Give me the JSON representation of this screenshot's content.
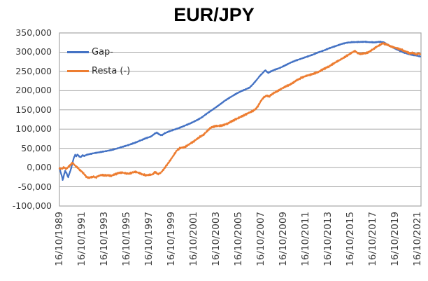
{
  "colors": {
    "background": "#ffffff",
    "gridline": "#a6a6a6",
    "plot_border": "#a6a6a6",
    "axis_text": "#3b3b3b",
    "title_text": "#000000",
    "series_blue": "#4472c4",
    "series_orange": "#ed7d31"
  },
  "chart_data": {
    "type": "line",
    "title": "EUR/JPY",
    "xlabel": "",
    "ylabel": "",
    "grid": true,
    "legend_position": "top-left-inside",
    "ylim": [
      -100000,
      350000
    ],
    "x_range": [
      1989.79,
      2022.12
    ],
    "x_tick_start_year": 1989.79,
    "x_tick_step_years": 2,
    "x_tick_labels": [
      "16/10/1989",
      "16/10/1991",
      "16/10/1993",
      "16/10/1995",
      "16/10/1997",
      "16/10/1999",
      "16/10/2001",
      "16/10/2003",
      "16/10/2005",
      "16/10/2007",
      "16/10/2009",
      "16/10/2011",
      "16/10/2013",
      "16/10/2015",
      "16/10/2017",
      "16/10/2019",
      "16/10/2021"
    ],
    "y_ticks": [
      {
        "value": 350000,
        "label": "350,000"
      },
      {
        "value": 300000,
        "label": "300,000"
      },
      {
        "value": 250000,
        "label": "250,000"
      },
      {
        "value": 200000,
        "label": "200,000"
      },
      {
        "value": 150000,
        "label": "150,000"
      },
      {
        "value": 100000,
        "label": "100,000"
      },
      {
        "value": 50000,
        "label": "50,000"
      },
      {
        "value": 0,
        "label": "0,000"
      },
      {
        "value": -50000,
        "label": "-50,000"
      },
      {
        "value": -100000,
        "label": "-100,000"
      }
    ],
    "legend": [
      {
        "label": "Gap-",
        "color": "#4472c4"
      },
      {
        "label": "Resta (-)",
        "color": "#ed7d31"
      }
    ],
    "series": [
      {
        "name": "Gap-",
        "color": "#4472c4",
        "noise": 1100,
        "points": [
          [
            1989.79,
            -2000
          ],
          [
            1989.92,
            -14000
          ],
          [
            1990.02,
            -24000
          ],
          [
            1990.08,
            -32000
          ],
          [
            1990.15,
            -26000
          ],
          [
            1990.22,
            -16000
          ],
          [
            1990.3,
            -9000
          ],
          [
            1990.42,
            -14000
          ],
          [
            1990.5,
            -21000
          ],
          [
            1990.58,
            -25000
          ],
          [
            1990.68,
            -15000
          ],
          [
            1990.78,
            -8000
          ],
          [
            1990.88,
            3000
          ],
          [
            1991.0,
            17000
          ],
          [
            1991.1,
            27000
          ],
          [
            1991.2,
            33000
          ],
          [
            1991.3,
            30000
          ],
          [
            1991.42,
            34000
          ],
          [
            1991.55,
            29000
          ],
          [
            1991.7,
            27000
          ],
          [
            1991.85,
            32000
          ],
          [
            1992.0,
            30000
          ],
          [
            1992.2,
            33000
          ],
          [
            1992.5,
            35000
          ],
          [
            1992.8,
            37000
          ],
          [
            1993.1,
            38500
          ],
          [
            1993.5,
            40500
          ],
          [
            1994.0,
            43000
          ],
          [
            1994.5,
            46000
          ],
          [
            1995.0,
            50000
          ],
          [
            1995.5,
            54500
          ],
          [
            1996.0,
            59000
          ],
          [
            1996.5,
            64000
          ],
          [
            1997.0,
            70000
          ],
          [
            1997.5,
            76000
          ],
          [
            1998.0,
            81000
          ],
          [
            1998.3,
            88000
          ],
          [
            1998.5,
            91000
          ],
          [
            1998.7,
            86000
          ],
          [
            1998.95,
            84000
          ],
          [
            1999.2,
            89000
          ],
          [
            1999.5,
            93000
          ],
          [
            2000.0,
            98000
          ],
          [
            2000.5,
            103000
          ],
          [
            2001.0,
            109000
          ],
          [
            2001.5,
            115000
          ],
          [
            2002.0,
            122000
          ],
          [
            2002.5,
            130000
          ],
          [
            2003.0,
            141000
          ],
          [
            2003.5,
            151000
          ],
          [
            2004.0,
            161000
          ],
          [
            2004.4,
            170000
          ],
          [
            2004.8,
            178000
          ],
          [
            2005.2,
            185000
          ],
          [
            2005.6,
            192000
          ],
          [
            2006.0,
            198000
          ],
          [
            2006.4,
            203000
          ],
          [
            2006.8,
            208000
          ],
          [
            2007.1,
            217000
          ],
          [
            2007.4,
            227000
          ],
          [
            2007.7,
            238000
          ],
          [
            2008.0,
            247000
          ],
          [
            2008.2,
            253000
          ],
          [
            2008.45,
            246000
          ],
          [
            2008.7,
            250000
          ],
          [
            2009.0,
            254000
          ],
          [
            2009.5,
            259000
          ],
          [
            2010.0,
            266000
          ],
          [
            2010.4,
            272000
          ],
          [
            2010.9,
            278000
          ],
          [
            2011.4,
            283000
          ],
          [
            2011.9,
            288000
          ],
          [
            2012.4,
            293000
          ],
          [
            2012.9,
            299000
          ],
          [
            2013.4,
            304000
          ],
          [
            2013.9,
            310000
          ],
          [
            2014.5,
            316000
          ],
          [
            2015.1,
            322000
          ],
          [
            2015.6,
            325000
          ],
          [
            2016.0,
            326000
          ],
          [
            2016.6,
            326500
          ],
          [
            2017.1,
            327000
          ],
          [
            2017.5,
            326000
          ],
          [
            2018.0,
            325500
          ],
          [
            2018.45,
            327000
          ],
          [
            2018.75,
            326000
          ],
          [
            2019.0,
            322000
          ],
          [
            2019.2,
            318000
          ],
          [
            2019.5,
            314000
          ],
          [
            2019.9,
            308000
          ],
          [
            2020.4,
            301000
          ],
          [
            2020.9,
            296000
          ],
          [
            2021.3,
            293000
          ],
          [
            2021.7,
            291000
          ],
          [
            2022.05,
            289000
          ]
        ]
      },
      {
        "name": "Resta (-)",
        "color": "#ed7d31",
        "noise": 2300,
        "points": [
          [
            1989.79,
            -2000
          ],
          [
            1990.0,
            -3000
          ],
          [
            1990.2,
            500
          ],
          [
            1990.4,
            -3500
          ],
          [
            1990.6,
            2000
          ],
          [
            1990.8,
            8000
          ],
          [
            1990.95,
            12000
          ],
          [
            1991.1,
            8000
          ],
          [
            1991.25,
            3000
          ],
          [
            1991.4,
            500
          ],
          [
            1991.6,
            -6000
          ],
          [
            1991.8,
            -11000
          ],
          [
            1992.0,
            -17000
          ],
          [
            1992.2,
            -24000
          ],
          [
            1992.4,
            -27000
          ],
          [
            1992.6,
            -25000
          ],
          [
            1992.85,
            -24000
          ],
          [
            1993.05,
            -25500
          ],
          [
            1993.3,
            -22000
          ],
          [
            1993.55,
            -19000
          ],
          [
            1993.8,
            -20500
          ],
          [
            1994.1,
            -20000
          ],
          [
            1994.4,
            -21500
          ],
          [
            1994.8,
            -17000
          ],
          [
            1995.1,
            -14000
          ],
          [
            1995.4,
            -13000
          ],
          [
            1995.7,
            -15000
          ],
          [
            1996.0,
            -16000
          ],
          [
            1996.3,
            -13000
          ],
          [
            1996.6,
            -11000
          ],
          [
            1996.9,
            -14000
          ],
          [
            1997.2,
            -17500
          ],
          [
            1997.5,
            -20000
          ],
          [
            1997.8,
            -19000
          ],
          [
            1998.1,
            -18000
          ],
          [
            1998.35,
            -11500
          ],
          [
            1998.6,
            -17000
          ],
          [
            1998.85,
            -13500
          ],
          [
            1999.1,
            -5000
          ],
          [
            1999.4,
            7000
          ],
          [
            1999.7,
            19000
          ],
          [
            2000.0,
            32000
          ],
          [
            2000.3,
            45000
          ],
          [
            2000.6,
            51000
          ],
          [
            2001.0,
            53000
          ],
          [
            2001.4,
            61000
          ],
          [
            2001.8,
            68000
          ],
          [
            2002.2,
            77000
          ],
          [
            2002.7,
            86000
          ],
          [
            2003.1,
            98000
          ],
          [
            2003.4,
            105000
          ],
          [
            2003.8,
            108000
          ],
          [
            2004.3,
            109000
          ],
          [
            2004.8,
            114000
          ],
          [
            2005.3,
            122000
          ],
          [
            2005.8,
            129000
          ],
          [
            2006.3,
            136000
          ],
          [
            2006.7,
            142000
          ],
          [
            2007.0,
            146000
          ],
          [
            2007.3,
            151000
          ],
          [
            2007.55,
            160000
          ],
          [
            2007.8,
            173000
          ],
          [
            2008.0,
            181000
          ],
          [
            2008.3,
            187000
          ],
          [
            2008.55,
            185000
          ],
          [
            2008.9,
            193000
          ],
          [
            2009.3,
            199000
          ],
          [
            2009.7,
            206000
          ],
          [
            2010.1,
            212000
          ],
          [
            2010.5,
            217000
          ],
          [
            2011.0,
            227000
          ],
          [
            2011.4,
            233000
          ],
          [
            2011.9,
            239000
          ],
          [
            2012.2,
            241000
          ],
          [
            2012.5,
            244000
          ],
          [
            2012.9,
            248000
          ],
          [
            2013.4,
            256000
          ],
          [
            2013.9,
            263000
          ],
          [
            2014.5,
            274000
          ],
          [
            2015.0,
            282000
          ],
          [
            2015.4,
            289000
          ],
          [
            2015.9,
            298000
          ],
          [
            2016.2,
            303000
          ],
          [
            2016.45,
            298000
          ],
          [
            2016.7,
            295000
          ],
          [
            2017.0,
            297000
          ],
          [
            2017.3,
            298000
          ],
          [
            2017.65,
            304000
          ],
          [
            2018.1,
            313000
          ],
          [
            2018.4,
            318000
          ],
          [
            2018.7,
            323000
          ],
          [
            2018.95,
            321000
          ],
          [
            2019.2,
            318000
          ],
          [
            2019.5,
            314000
          ],
          [
            2019.9,
            311000
          ],
          [
            2020.4,
            306000
          ],
          [
            2020.8,
            301000
          ],
          [
            2021.1,
            297000
          ],
          [
            2021.4,
            298000
          ],
          [
            2021.7,
            294000
          ],
          [
            2021.9,
            297000
          ],
          [
            2022.05,
            295000
          ]
        ]
      }
    ]
  }
}
